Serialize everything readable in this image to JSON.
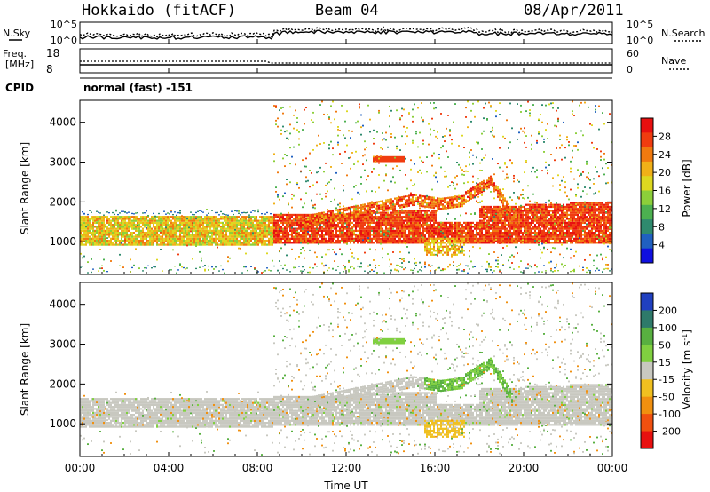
{
  "header": {
    "radar": "Hokkaido (fitACF)",
    "beam": "Beam 04",
    "date": "08/Apr/2011"
  },
  "top_panels": {
    "nsky_label": "N.Sky",
    "nsky_ticks": [
      "10^5",
      "10^0"
    ],
    "nsearch_label": "N.Search",
    "nsearch_ticks": [
      "10^5",
      "10^0"
    ],
    "freq_label_line1": "Freq.",
    "freq_label_line2": "[MHz]",
    "freq_ticks": [
      "18",
      "8"
    ],
    "nave_label": "Nave",
    "nave_ticks": [
      "60",
      "0"
    ],
    "cpid_label": "CPID",
    "cpid_text": "normal (fast) -151"
  },
  "chart_data": [
    {
      "type": "heatmap",
      "title": "Power",
      "ylabel": "Slant Range [km]",
      "xlabel": "Time UT",
      "x_ticks": [
        "00:00",
        "04:00",
        "08:00",
        "12:00",
        "16:00",
        "20:00",
        "00:00"
      ],
      "xlim_hours": [
        0,
        24
      ],
      "y_ticks": [
        1000,
        2000,
        3000,
        4000
      ],
      "ylim_km": [
        180,
        4550
      ],
      "colorbar_label": "Power [dB]",
      "colorbar_ticks": [
        "4",
        "8",
        "12",
        "16",
        "20",
        "24",
        "28"
      ],
      "colorbar_colors": [
        "#1010e0",
        "#2060c0",
        "#2f8a6e",
        "#4cb050",
        "#8ccf3a",
        "#ddd820",
        "#f0b018",
        "#f07a10",
        "#f03c10",
        "#e81010"
      ],
      "features": [
        {
          "name": "main band, 00-08.7 UT",
          "x_start_h": 0,
          "x_end_h": 8.7,
          "range_km": [
            900,
            1650
          ],
          "power_db": 20
        },
        {
          "name": "main band, 08.7-24 UT",
          "x_start_h": 8.7,
          "x_end_h": 24,
          "range_km": [
            950,
            1750
          ],
          "power_db": 27
        },
        {
          "name": "rising echo arc",
          "x_start_h": 10,
          "x_end_h": 19.5,
          "range_km": [
            1700,
            2700
          ],
          "power_db": 25
        },
        {
          "name": "patch near 14 UT",
          "x_start_h": 13.2,
          "x_end_h": 14.6,
          "range_km": [
            3000,
            3150
          ],
          "power_db": 27
        }
      ]
    },
    {
      "type": "heatmap",
      "title": "Velocity",
      "ylabel": "Slant Range [km]",
      "xlabel": "Time UT",
      "x_ticks": [
        "00:00",
        "04:00",
        "08:00",
        "12:00",
        "16:00",
        "20:00",
        "00:00"
      ],
      "xlim_hours": [
        0,
        24
      ],
      "y_ticks": [
        1000,
        2000,
        3000,
        4000
      ],
      "ylim_km": [
        180,
        4550
      ],
      "colorbar_label": "Velocity [m s^-1]",
      "colorbar_ticks": [
        "200",
        "100",
        "50",
        "15",
        "-15",
        "-50",
        "-100",
        "-200"
      ],
      "colorbar_colors": [
        "#2040c0",
        "#2e7a6a",
        "#58b040",
        "#80d040",
        "#c8c8c0",
        "#f0c020",
        "#f09010",
        "#f05010",
        "#e81010"
      ],
      "features": [
        {
          "name": "ground scatter band",
          "x_start_h": 0,
          "x_end_h": 24,
          "range_km": [
            900,
            1750
          ],
          "velocity_ms": 0
        },
        {
          "name": "positive-velocity arc",
          "x_start_h": 15.5,
          "x_end_h": 19.5,
          "range_km": [
            1500,
            2700
          ],
          "velocity_ms": 60
        },
        {
          "name": "negative-velocity patch",
          "x_start_h": 15.5,
          "x_end_h": 17.3,
          "range_km": [
            650,
            1100
          ],
          "velocity_ms": -50
        }
      ]
    }
  ],
  "colors": {
    "axis": "#000000",
    "ground_scatter": "#c8c8c0"
  }
}
